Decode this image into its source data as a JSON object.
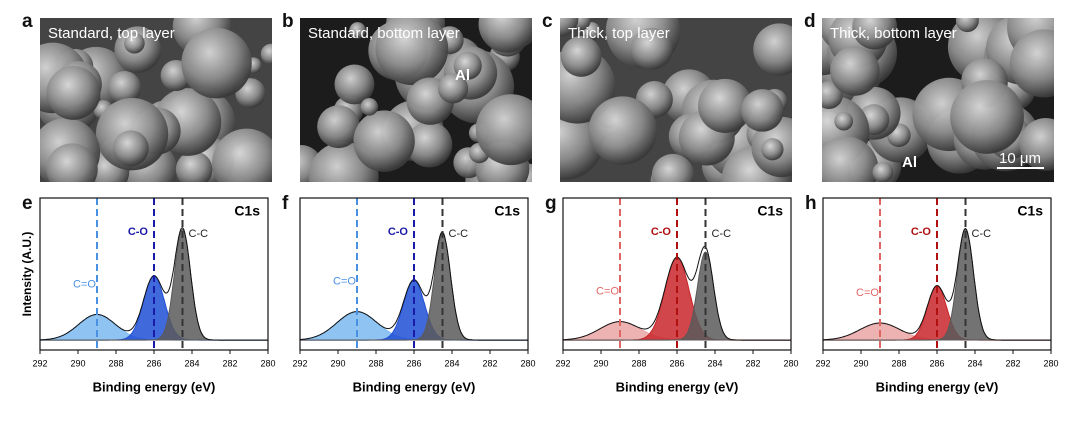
{
  "images": [
    {
      "panel": "a",
      "caption": "Standard, top layer"
    },
    {
      "panel": "b",
      "caption": "Standard, bottom layer",
      "note": "Al"
    },
    {
      "panel": "c",
      "caption": "Thick, top layer"
    },
    {
      "panel": "d",
      "caption": "Thick, bottom layer",
      "note": "Al",
      "scale_bar": "10 μm"
    }
  ],
  "chart_data": [
    {
      "type": "xps",
      "panel": "e",
      "title": "C1s",
      "ylabel": "Intensity (A.U.)",
      "xlabel": "Binding energy (eV)",
      "xlim": [
        292,
        280
      ],
      "xticks": [
        292,
        290,
        288,
        286,
        284,
        282,
        280
      ],
      "ylim": [
        -0.07,
        1
      ],
      "envelope_color": "#111",
      "series": [
        {
          "name": "C=O",
          "color": "#7ab8f0",
          "line_color": "#4a90e2",
          "center": 289,
          "height": 0.18,
          "fwhm": 2.3
        },
        {
          "name": "C-O",
          "color": "#1f4fd6",
          "line_color": "#1a1aa8",
          "center": 286,
          "height": 0.45,
          "fwhm": 1.3
        },
        {
          "name": "C-C",
          "color": "#5a5a5a",
          "line_color": "#333333",
          "center": 284.5,
          "height": 0.78,
          "fwhm": 1.0
        }
      ]
    },
    {
      "type": "xps",
      "panel": "f",
      "title": "C1s",
      "xlabel": "Binding energy (eV)",
      "xlim": [
        292,
        280
      ],
      "xticks": [
        292,
        290,
        288,
        286,
        284,
        282,
        280
      ],
      "ylim": [
        -0.07,
        1
      ],
      "envelope_color": "#111",
      "series": [
        {
          "name": "C=O",
          "color": "#7ab8f0",
          "line_color": "#4a90e2",
          "center": 289,
          "height": 0.2,
          "fwhm": 2.5
        },
        {
          "name": "C-O",
          "color": "#1f4fd6",
          "line_color": "#1a1aa8",
          "center": 286,
          "height": 0.42,
          "fwhm": 1.3
        },
        {
          "name": "C-C",
          "color": "#5a5a5a",
          "line_color": "#333333",
          "center": 284.5,
          "height": 0.75,
          "fwhm": 1.0
        }
      ]
    },
    {
      "type": "xps",
      "panel": "g",
      "title": "C1s",
      "xlabel": "Binding energy (eV)",
      "xlim": [
        292,
        280
      ],
      "xticks": [
        292,
        290,
        288,
        286,
        284,
        282,
        280
      ],
      "ylim": [
        -0.07,
        1
      ],
      "envelope_color": "#111",
      "series": [
        {
          "name": "C=O",
          "color": "#eaa6a6",
          "line_color": "#e06666",
          "center": 289,
          "height": 0.13,
          "fwhm": 2.5
        },
        {
          "name": "C-O",
          "color": "#c8262a",
          "line_color": "#b01010",
          "center": 286,
          "height": 0.58,
          "fwhm": 1.5
        },
        {
          "name": "C-C",
          "color": "#5a5a5a",
          "line_color": "#333333",
          "center": 284.5,
          "height": 0.62,
          "fwhm": 1.0
        }
      ]
    },
    {
      "type": "xps",
      "panel": "h",
      "title": "C1s",
      "xlabel": "Binding energy (eV)",
      "xlim": [
        292,
        280
      ],
      "xticks": [
        292,
        290,
        288,
        286,
        284,
        282,
        280
      ],
      "ylim": [
        -0.07,
        1
      ],
      "envelope_color": "#111",
      "series": [
        {
          "name": "C=O",
          "color": "#eaa6a6",
          "line_color": "#e06666",
          "center": 289,
          "height": 0.12,
          "fwhm": 2.5
        },
        {
          "name": "C-O",
          "color": "#c8262a",
          "line_color": "#b01010",
          "center": 286,
          "height": 0.38,
          "fwhm": 1.2
        },
        {
          "name": "C-C",
          "color": "#5a5a5a",
          "line_color": "#333333",
          "center": 284.5,
          "height": 0.78,
          "fwhm": 1.0
        }
      ]
    }
  ]
}
